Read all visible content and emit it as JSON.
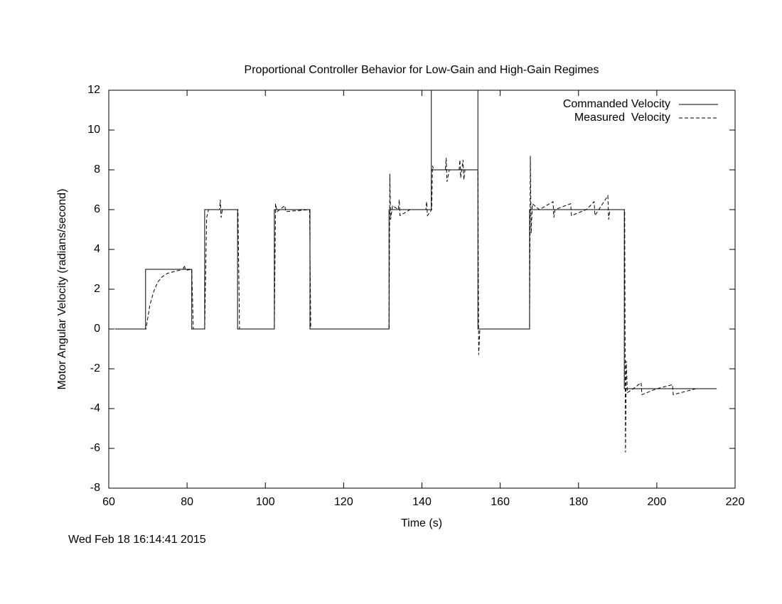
{
  "chart_data": {
    "type": "line",
    "title": "Proportional Controller Behavior for Low-Gain and High-Gain Regimes",
    "x_label": "Time (s)",
    "y_label": "Motor Angular Velocity (radians/second)",
    "timestamp": "Wed Feb 18 16:14:41 2015",
    "xlim": [
      60,
      220
    ],
    "xticks": [
      60,
      80,
      100,
      120,
      140,
      160,
      180,
      200,
      220
    ],
    "ylim": [
      -8,
      12
    ],
    "yticks": [
      -8,
      -6,
      -4,
      -2,
      0,
      2,
      4,
      6,
      8,
      10,
      12
    ],
    "legend": "top-right",
    "series": [
      {
        "name": "Commanded Velocity",
        "color": "#000000",
        "dash": "solid",
        "x": [
          61.6,
          69.4,
          69.4,
          81.2,
          81.2,
          84.5,
          84.5,
          92.9,
          92.9,
          102.3,
          102.3,
          111.4,
          111.4,
          131.6,
          131.6,
          142.4,
          142.4,
          142.4,
          154.3,
          154.3,
          154.3,
          167.5,
          167.5,
          191.7,
          191.7,
          215.3
        ],
        "values": [
          0,
          0,
          3,
          3,
          0,
          0,
          6,
          6,
          0,
          0,
          6,
          6,
          0,
          0,
          6,
          6,
          12,
          8,
          8,
          12,
          0,
          0,
          6,
          6,
          -3,
          -3
        ]
      },
      {
        "name": "Measured  Velocity",
        "color": "#000000",
        "dash": "dashed",
        "x": [
          61.6,
          69.5,
          70.5,
          71.5,
          72.5,
          73.5,
          75,
          77,
          79,
          79.3,
          79.6,
          81.2,
          81.6,
          84.5,
          85,
          85.5,
          88.3,
          88.5,
          88.7,
          89,
          93,
          93.4,
          102.3,
          102.6,
          103,
          105,
          105.2,
          111.3,
          111.6,
          131.6,
          131.8,
          132,
          132.5,
          134,
          134.2,
          134.4,
          137,
          141,
          141.2,
          141.4,
          142.5,
          142.7,
          143,
          146,
          146.2,
          146.4,
          147,
          149.5,
          149.7,
          149.9,
          150.5,
          150.7,
          151,
          154.3,
          154.5,
          154.8,
          167.5,
          167.7,
          167.9,
          168.2,
          170,
          173.5,
          173.7,
          174,
          178,
          178.2,
          182,
          184,
          184.2,
          187.5,
          187.7,
          188,
          191.8,
          192,
          192.2,
          192.5,
          194,
          196,
          196.2,
          200,
          204,
          204.2,
          210,
          215.3
        ],
        "values": [
          0,
          0,
          1.2,
          1.9,
          2.35,
          2.6,
          2.8,
          2.9,
          3.0,
          3.2,
          2.95,
          3.0,
          0,
          0,
          5.6,
          6,
          6,
          6.5,
          5.6,
          6,
          6,
          0,
          0,
          6.3,
          5.9,
          6.2,
          5.9,
          6,
          0,
          0,
          7.8,
          5.5,
          6.2,
          6,
          6.5,
          5.7,
          6,
          6,
          6.4,
          5.7,
          6,
          8.2,
          8,
          8,
          8.6,
          7.4,
          8,
          8,
          8.5,
          7.6,
          8.5,
          7.5,
          8,
          8,
          -1.3,
          0,
          0,
          8.7,
          4.8,
          6.3,
          6,
          6.4,
          5.6,
          6,
          6.3,
          5.7,
          6,
          6.4,
          5.7,
          6.7,
          5.5,
          6,
          6,
          -6.2,
          -1.6,
          -3.2,
          -3,
          -2.7,
          -3.3,
          -3,
          -2.8,
          -3.3,
          -3,
          -3
        ]
      }
    ]
  }
}
